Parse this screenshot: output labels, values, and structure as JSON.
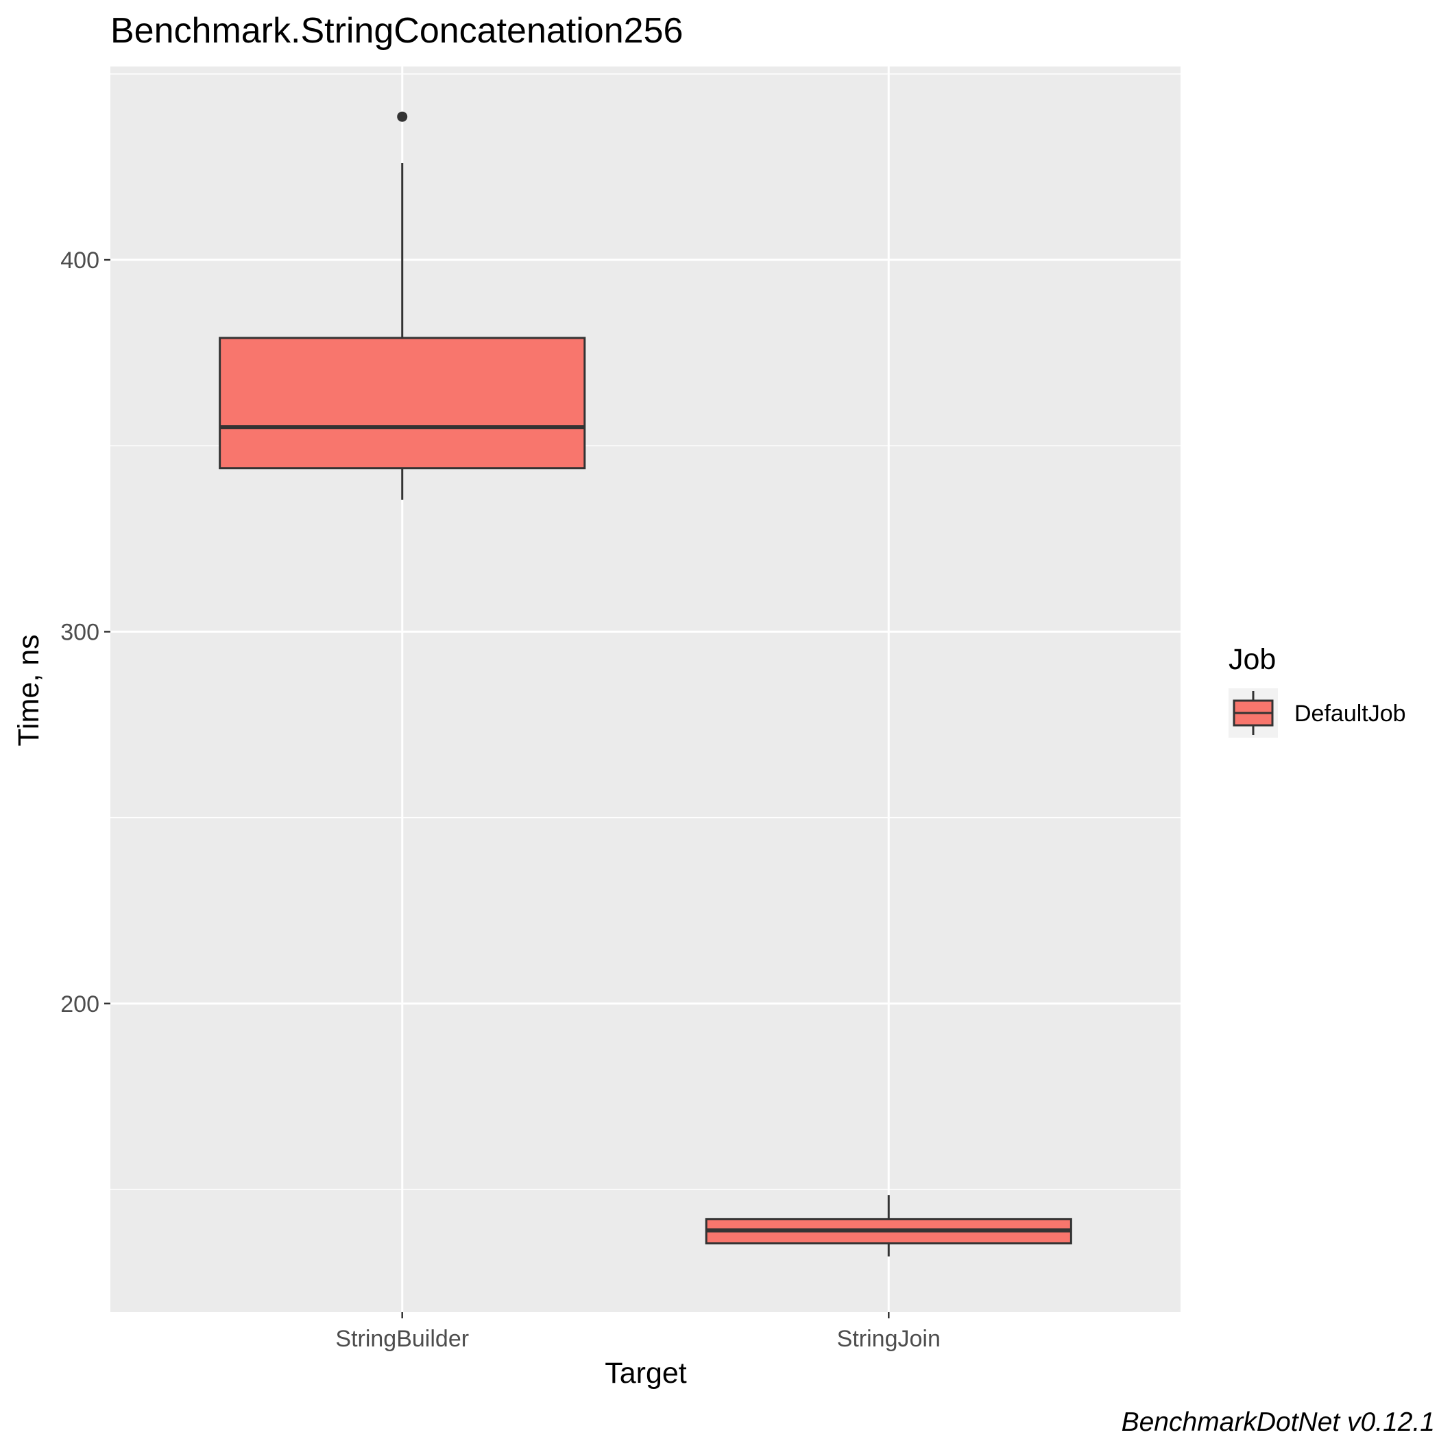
{
  "chart_data": {
    "type": "boxplot",
    "title": "Benchmark.StringConcatenation256",
    "xlabel": "Target",
    "ylabel": "Time, ns",
    "categories": [
      "StringBuilder",
      "StringJoin"
    ],
    "ylim": [
      117,
      452
    ],
    "yticks": [
      200,
      300,
      400
    ],
    "grid": true,
    "series": [
      {
        "name": "DefaultJob",
        "boxes": [
          {
            "category": "StringBuilder",
            "whisker_low": 335.5,
            "q1": 344,
            "median": 355,
            "q3": 379,
            "whisker_high": 426,
            "outliers": [
              438.5
            ]
          },
          {
            "category": "StringJoin",
            "whisker_low": 132,
            "q1": 135.5,
            "median": 139,
            "q3": 142,
            "whisker_high": 148.5,
            "outliers": []
          }
        ]
      }
    ],
    "legend": {
      "title": "Job",
      "position": "right",
      "entries": [
        "DefaultJob"
      ]
    },
    "caption": "BenchmarkDotNet v0.12.1",
    "colors": {
      "fill": "#f8766d",
      "stroke": "#333333",
      "panel": "#ebebeb",
      "grid": "#ffffff"
    }
  }
}
